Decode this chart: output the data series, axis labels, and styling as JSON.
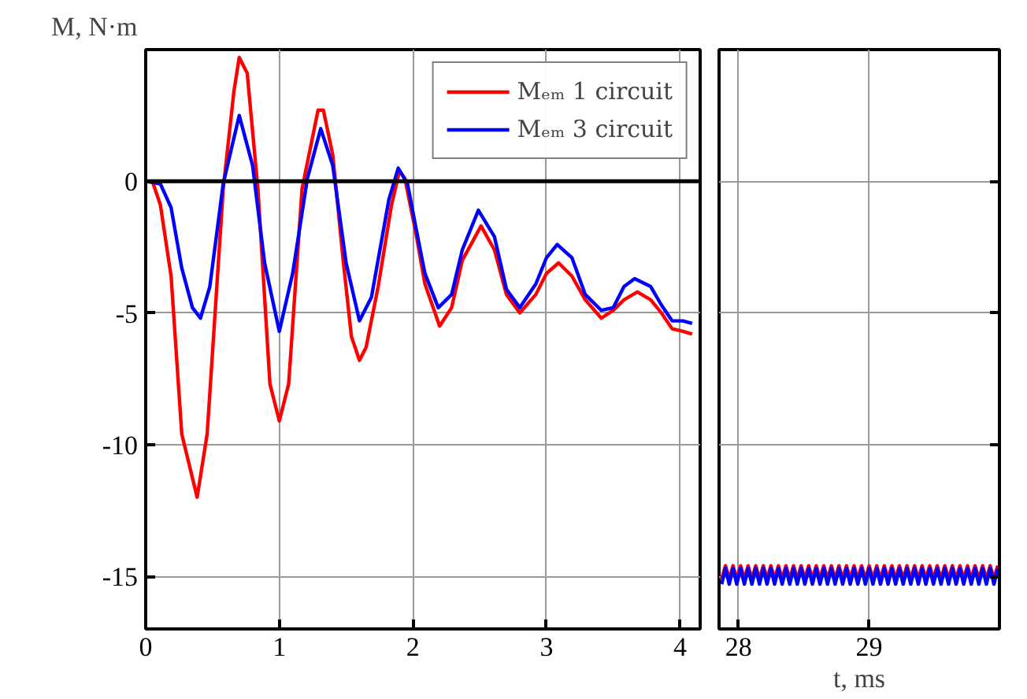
{
  "chart_data": [
    {
      "type": "line",
      "ylabel": "M, N·m",
      "xlim": [
        0,
        4.15
      ],
      "xticks": [
        0,
        1,
        2,
        3,
        4
      ],
      "ylim": [
        -17,
        5
      ],
      "yticks": [
        -15,
        -10,
        -5,
        0
      ],
      "grid": true,
      "legend": "top right",
      "marker": "none",
      "line_style": "solid",
      "ref_lines": [
        {
          "axis": "y",
          "value": 0,
          "color": "#000000"
        }
      ],
      "series": [
        {
          "name": "Mₑₘ 1 circuit",
          "color": "#ff0000",
          "x": [
            0,
            0.05,
            0.11,
            0.19,
            0.27,
            0.385,
            0.46,
            0.58,
            0.66,
            0.7,
            0.76,
            0.84,
            0.93,
            1.0,
            1.07,
            1.17,
            1.29,
            1.33,
            1.4,
            1.48,
            1.54,
            1.6,
            1.65,
            1.74,
            1.84,
            1.9,
            1.94,
            2.02,
            2.09,
            2.2,
            2.29,
            2.37,
            2.51,
            2.61,
            2.7,
            2.8,
            2.92,
            3.0,
            3.09,
            3.19,
            3.29,
            3.41,
            3.5,
            3.58,
            3.68,
            3.78,
            3.86,
            3.94,
            4.02,
            4.09
          ],
          "values": [
            0,
            0,
            -0.9,
            -3.6,
            -9.6,
            -12.0,
            -9.6,
            -0.3,
            3.4,
            4.7,
            4.1,
            -0.3,
            -7.7,
            -9.1,
            -7.7,
            -0.3,
            2.7,
            2.7,
            1.0,
            -3.1,
            -5.9,
            -6.8,
            -6.3,
            -4.0,
            -0.9,
            0.4,
            0.1,
            -1.9,
            -3.9,
            -5.5,
            -4.8,
            -3.0,
            -1.7,
            -2.6,
            -4.3,
            -5.0,
            -4.3,
            -3.5,
            -3.1,
            -3.6,
            -4.5,
            -5.2,
            -4.9,
            -4.5,
            -4.2,
            -4.5,
            -5.0,
            -5.6,
            -5.7,
            -5.8
          ]
        },
        {
          "name": "Mₑₘ 3 circuit",
          "color": "#0000ff",
          "x": [
            0,
            0.11,
            0.19,
            0.27,
            0.35,
            0.41,
            0.48,
            0.58,
            0.7,
            0.8,
            0.89,
            1.0,
            1.1,
            1.21,
            1.31,
            1.4,
            1.5,
            1.6,
            1.69,
            1.82,
            1.89,
            1.96,
            2.02,
            2.09,
            2.19,
            2.29,
            2.37,
            2.49,
            2.61,
            2.7,
            2.8,
            2.92,
            3.0,
            3.08,
            3.19,
            3.29,
            3.41,
            3.5,
            3.58,
            3.66,
            3.78,
            3.86,
            3.94,
            4.02,
            4.09
          ],
          "values": [
            0,
            -0.1,
            -1.0,
            -3.3,
            -4.8,
            -5.2,
            -4.0,
            -0.1,
            2.5,
            0.6,
            -3.1,
            -5.7,
            -3.5,
            0.1,
            2.0,
            0.6,
            -3.1,
            -5.3,
            -4.4,
            -0.7,
            0.5,
            -0.1,
            -1.7,
            -3.5,
            -4.8,
            -4.3,
            -2.6,
            -1.1,
            -2.1,
            -4.1,
            -4.8,
            -3.9,
            -2.9,
            -2.4,
            -2.9,
            -4.3,
            -4.9,
            -4.8,
            -4.0,
            -3.7,
            -4.0,
            -4.7,
            -5.3,
            -5.3,
            -5.4
          ]
        }
      ]
    },
    {
      "type": "line",
      "xlabel": "t, ms",
      "xlim": [
        27.85,
        30
      ],
      "xticks": [
        28,
        29
      ],
      "ylim": [
        -17,
        5
      ],
      "yticks": [
        -15,
        -10,
        -5,
        0
      ],
      "grid": true,
      "tick_labels": "x",
      "marker": "none",
      "line_style": "solid",
      "x": [
        27.87,
        27.899,
        27.928,
        27.957,
        27.986,
        28.015,
        28.044,
        28.073,
        28.102,
        28.131,
        28.16,
        28.189,
        28.218,
        28.247,
        28.276,
        28.305,
        28.334,
        28.363,
        28.392,
        28.421,
        28.45,
        28.479,
        28.508,
        28.537,
        28.566,
        28.595,
        28.624,
        28.653,
        28.682,
        28.711,
        28.74,
        28.769,
        28.798,
        28.827,
        28.856,
        28.885,
        28.914,
        28.943,
        28.972,
        29.001,
        29.03,
        29.059,
        29.088,
        29.117,
        29.146,
        29.175,
        29.204,
        29.233,
        29.262,
        29.291,
        29.32,
        29.349,
        29.378,
        29.407,
        29.436,
        29.465,
        29.494,
        29.523,
        29.552,
        29.581,
        29.61,
        29.639,
        29.668,
        29.697,
        29.726,
        29.755,
        29.784,
        29.813,
        29.842,
        29.871,
        29.9,
        29.929,
        29.958,
        29.987
      ],
      "series": [
        {
          "color": "#ff0000",
          "values": [
            -15.1,
            -14.6,
            -15.1,
            -14.6,
            -15.1,
            -14.6,
            -15.1,
            -14.6,
            -15.1,
            -14.6,
            -15.1,
            -14.6,
            -15.1,
            -14.6,
            -15.1,
            -14.6,
            -15.1,
            -14.6,
            -15.1,
            -14.6,
            -15.1,
            -14.6,
            -15.1,
            -14.6,
            -15.1,
            -14.6,
            -15.1,
            -14.6,
            -15.1,
            -14.6,
            -15.1,
            -14.6,
            -15.1,
            -14.6,
            -15.1,
            -14.6,
            -15.1,
            -14.6,
            -15.1,
            -14.6,
            -15.1,
            -14.6,
            -15.1,
            -14.6,
            -15.1,
            -14.6,
            -15.1,
            -14.6,
            -15.1,
            -14.6,
            -15.1,
            -14.6,
            -15.1,
            -14.6,
            -15.1,
            -14.6,
            -15.1,
            -14.6,
            -15.1,
            -14.6,
            -15.1,
            -14.6,
            -15.1,
            -14.6,
            -15.1,
            -14.6,
            -15.1,
            -14.6,
            -15.1,
            -14.6,
            -15.1,
            -14.6,
            -15.1,
            -14.6
          ]
        },
        {
          "color": "#0000ff",
          "values": [
            -15.3,
            -14.7,
            -15.3,
            -14.7,
            -15.3,
            -14.7,
            -15.3,
            -14.7,
            -15.3,
            -14.7,
            -15.3,
            -14.7,
            -15.3,
            -14.7,
            -15.3,
            -14.7,
            -15.3,
            -14.7,
            -15.3,
            -14.7,
            -15.3,
            -14.7,
            -15.3,
            -14.7,
            -15.3,
            -14.7,
            -15.3,
            -14.7,
            -15.3,
            -14.7,
            -15.3,
            -14.7,
            -15.3,
            -14.7,
            -15.3,
            -14.7,
            -15.3,
            -14.7,
            -15.3,
            -14.7,
            -15.3,
            -14.7,
            -15.3,
            -14.7,
            -15.3,
            -14.7,
            -15.3,
            -14.7,
            -15.3,
            -14.7,
            -15.3,
            -14.7,
            -15.3,
            -14.7,
            -15.3,
            -14.7,
            -15.3,
            -14.7,
            -15.3,
            -14.7,
            -15.3,
            -14.7,
            -15.3,
            -14.7,
            -15.3,
            -14.7,
            -15.3,
            -14.7,
            -15.3,
            -14.7,
            -15.3,
            -14.7,
            -15.3,
            -14.7
          ]
        }
      ]
    }
  ]
}
